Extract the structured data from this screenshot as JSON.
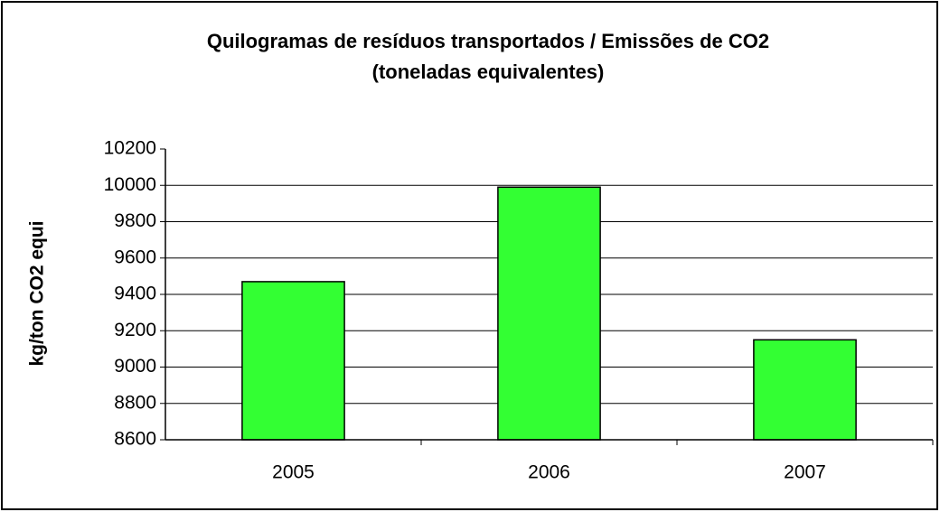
{
  "chart_data": {
    "type": "bar",
    "title": [
      "Quilogramas de resíduos transportados / Emissões de CO2",
      "(toneladas equivalentes)"
    ],
    "y_label": "kg/ton CO2 equi",
    "categories": [
      "2005",
      "2006",
      "2007"
    ],
    "values": [
      9470,
      9990,
      9150
    ],
    "color": "#33ff33",
    "ylim": [
      8600,
      10200
    ],
    "yticks": [
      8600,
      8800,
      9000,
      9200,
      9400,
      9600,
      9800,
      10000,
      10200
    ],
    "grid": true
  }
}
